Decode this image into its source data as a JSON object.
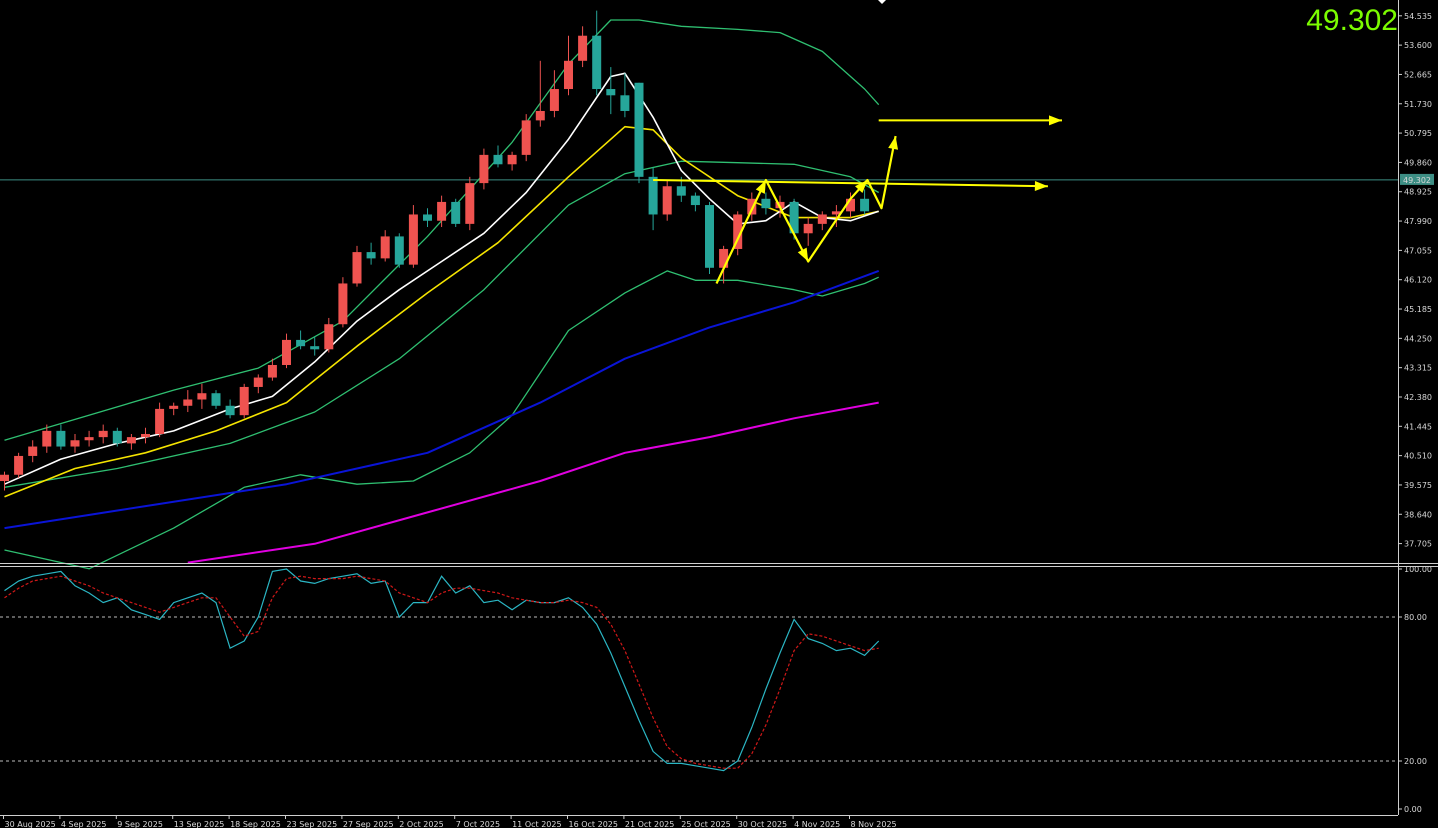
{
  "price_readout": "49.302",
  "colors": {
    "background": "#000000",
    "bull_candle": "#ef5350",
    "bear_candle": "#26a69a",
    "bollinger": "#2fbf71",
    "ma_fast": "#ffffff",
    "ma_mid": "#f5e400",
    "ma_slow": "#0a14d6",
    "ma_long": "#e000e0",
    "stoch_main": "#2bb6c4",
    "stoch_signal": "#d01818",
    "annotation": "#ffff00",
    "current_price_line": "#3d8e84"
  },
  "chart_data": [
    {
      "type": "candlestick",
      "title": "",
      "x_labels": [
        "30 Aug 2025",
        "4 Sep 2025",
        "9 Sep 2025",
        "13 Sep 2025",
        "18 Sep 2025",
        "23 Sep 2025",
        "27 Sep 2025",
        "2 Oct 2025",
        "7 Oct 2025",
        "11 Oct 2025",
        "16 Oct 2025",
        "21 Oct 2025",
        "25 Oct 2025",
        "30 Oct 2025",
        "4 Nov 2025",
        "8 Nov 2025"
      ],
      "y_ticks": [
        "54.535",
        "53.600",
        "52.665",
        "51.730",
        "50.795",
        "49.860",
        "48.925",
        "47.990",
        "47.055",
        "46.120",
        "45.185",
        "44.250",
        "43.315",
        "42.380",
        "41.445",
        "40.510",
        "39.575",
        "38.640",
        "37.705"
      ],
      "ylim": [
        37.15,
        54.72
      ],
      "current_price": 49.302,
      "current_price_label": "49.302",
      "candles": [
        [
          39.7,
          40.0,
          39.4,
          39.9
        ],
        [
          39.9,
          40.6,
          39.8,
          40.5
        ],
        [
          40.5,
          41.0,
          40.3,
          40.8
        ],
        [
          40.8,
          41.5,
          40.6,
          41.3
        ],
        [
          41.3,
          41.5,
          40.7,
          40.8
        ],
        [
          40.8,
          41.2,
          40.6,
          41.0
        ],
        [
          41.0,
          41.3,
          40.8,
          41.1
        ],
        [
          41.1,
          41.5,
          40.9,
          41.3
        ],
        [
          41.3,
          41.4,
          40.8,
          40.9
        ],
        [
          40.9,
          41.2,
          40.7,
          41.1
        ],
        [
          41.1,
          41.4,
          40.9,
          41.2
        ],
        [
          41.2,
          42.2,
          41.1,
          42.0
        ],
        [
          42.0,
          42.2,
          41.8,
          42.1
        ],
        [
          42.1,
          42.6,
          41.9,
          42.3
        ],
        [
          42.3,
          42.8,
          42.0,
          42.5
        ],
        [
          42.5,
          42.6,
          42.0,
          42.1
        ],
        [
          42.1,
          42.3,
          41.7,
          41.8
        ],
        [
          41.8,
          42.8,
          41.7,
          42.7
        ],
        [
          42.7,
          43.1,
          42.5,
          43.0
        ],
        [
          43.0,
          43.6,
          42.9,
          43.4
        ],
        [
          43.4,
          44.4,
          43.3,
          44.2
        ],
        [
          44.2,
          44.5,
          43.9,
          44.0
        ],
        [
          44.0,
          44.3,
          43.7,
          43.9
        ],
        [
          43.9,
          44.9,
          43.8,
          44.7
        ],
        [
          44.7,
          46.2,
          44.6,
          46.0
        ],
        [
          46.0,
          47.2,
          45.9,
          47.0
        ],
        [
          47.0,
          47.3,
          46.6,
          46.8
        ],
        [
          46.8,
          47.7,
          46.7,
          47.5
        ],
        [
          47.5,
          47.6,
          46.5,
          46.6
        ],
        [
          46.6,
          48.5,
          46.5,
          48.2
        ],
        [
          48.2,
          48.4,
          47.8,
          48.0
        ],
        [
          48.0,
          48.8,
          47.8,
          48.6
        ],
        [
          48.6,
          48.7,
          47.8,
          47.9
        ],
        [
          47.9,
          49.4,
          47.7,
          49.2
        ],
        [
          49.2,
          50.3,
          49.0,
          50.1
        ],
        [
          50.1,
          50.4,
          49.7,
          49.8
        ],
        [
          49.8,
          50.2,
          49.6,
          50.1
        ],
        [
          50.1,
          51.4,
          49.9,
          51.2
        ],
        [
          51.2,
          53.1,
          51.0,
          51.5
        ],
        [
          51.5,
          52.8,
          51.3,
          52.2
        ],
        [
          52.2,
          53.9,
          52.0,
          53.1
        ],
        [
          53.1,
          54.2,
          52.9,
          53.9
        ],
        [
          53.9,
          54.7,
          52.0,
          52.2
        ],
        [
          52.2,
          52.9,
          51.4,
          52.0
        ],
        [
          52.0,
          52.7,
          51.3,
          51.5
        ],
        [
          52.4,
          52.4,
          49.2,
          49.4
        ],
        [
          49.4,
          49.7,
          47.7,
          48.2
        ],
        [
          48.2,
          49.3,
          48.0,
          49.1
        ],
        [
          49.1,
          49.4,
          48.6,
          48.8
        ],
        [
          48.8,
          48.9,
          48.3,
          48.5
        ],
        [
          48.5,
          48.6,
          46.3,
          46.5
        ],
        [
          46.5,
          47.2,
          46.0,
          47.1
        ],
        [
          47.1,
          48.3,
          46.9,
          48.2
        ],
        [
          48.2,
          48.9,
          48.0,
          48.7
        ],
        [
          48.7,
          48.9,
          48.2,
          48.4
        ],
        [
          48.4,
          48.8,
          48.1,
          48.6
        ],
        [
          48.6,
          48.7,
          47.4,
          47.6
        ],
        [
          47.6,
          48.1,
          47.2,
          47.9
        ],
        [
          47.9,
          48.3,
          47.7,
          48.2
        ],
        [
          48.2,
          48.5,
          47.8,
          48.3
        ],
        [
          48.3,
          48.9,
          48.1,
          48.7
        ],
        [
          48.7,
          49.0,
          48.2,
          48.3
        ]
      ],
      "indicators": {
        "bollinger_upper": [
          [
            0,
            41.0
          ],
          [
            12,
            42.6
          ],
          [
            18,
            43.3
          ],
          [
            24,
            44.8
          ],
          [
            30,
            47.5
          ],
          [
            36,
            50.5
          ],
          [
            40,
            53.0
          ],
          [
            43,
            54.4
          ],
          [
            45,
            54.4
          ],
          [
            48,
            54.2
          ],
          [
            52,
            54.1
          ],
          [
            55,
            54.0
          ],
          [
            58,
            53.4
          ],
          [
            61,
            52.2
          ],
          [
            62,
            51.7
          ]
        ],
        "bollinger_middle": [
          [
            0,
            39.5
          ],
          [
            8,
            40.1
          ],
          [
            16,
            40.9
          ],
          [
            22,
            41.9
          ],
          [
            28,
            43.6
          ],
          [
            34,
            45.8
          ],
          [
            40,
            48.5
          ],
          [
            44,
            49.5
          ],
          [
            48,
            49.9
          ],
          [
            52,
            49.85
          ],
          [
            56,
            49.8
          ],
          [
            60,
            49.4
          ],
          [
            62,
            48.9
          ]
        ],
        "bollinger_lower": [
          [
            0,
            37.5
          ],
          [
            6,
            36.9
          ],
          [
            12,
            38.2
          ],
          [
            17,
            39.5
          ],
          [
            21,
            39.9
          ],
          [
            25,
            39.6
          ],
          [
            29,
            39.7
          ],
          [
            33,
            40.6
          ],
          [
            36,
            41.8
          ],
          [
            40,
            44.5
          ],
          [
            44,
            45.7
          ],
          [
            47,
            46.4
          ],
          [
            49,
            46.1
          ],
          [
            52,
            46.1
          ],
          [
            56,
            45.8
          ],
          [
            58,
            45.6
          ],
          [
            61,
            46.0
          ],
          [
            62,
            46.2
          ]
        ],
        "ma_fast": [
          [
            0,
            39.6
          ],
          [
            4,
            40.4
          ],
          [
            8,
            40.9
          ],
          [
            12,
            41.3
          ],
          [
            16,
            42.0
          ],
          [
            19,
            42.4
          ],
          [
            22,
            43.5
          ],
          [
            25,
            44.8
          ],
          [
            28,
            45.8
          ],
          [
            31,
            46.7
          ],
          [
            34,
            47.6
          ],
          [
            37,
            48.9
          ],
          [
            40,
            50.6
          ],
          [
            43,
            52.6
          ],
          [
            44,
            52.7
          ],
          [
            46,
            51.3
          ],
          [
            48,
            49.6
          ],
          [
            50,
            48.7
          ],
          [
            52,
            47.9
          ],
          [
            54,
            48.0
          ],
          [
            56,
            48.6
          ],
          [
            58,
            48.1
          ],
          [
            60,
            48.0
          ],
          [
            62,
            48.3
          ]
        ],
        "ma_mid": [
          [
            0,
            39.2
          ],
          [
            5,
            40.1
          ],
          [
            10,
            40.6
          ],
          [
            15,
            41.3
          ],
          [
            20,
            42.2
          ],
          [
            25,
            44.0
          ],
          [
            30,
            45.7
          ],
          [
            35,
            47.3
          ],
          [
            40,
            49.4
          ],
          [
            44,
            51.0
          ],
          [
            46,
            50.9
          ],
          [
            48,
            50.0
          ],
          [
            52,
            48.8
          ],
          [
            56,
            48.1
          ],
          [
            60,
            48.1
          ],
          [
            62,
            48.3
          ]
        ],
        "ma_slow": [
          [
            0,
            38.2
          ],
          [
            10,
            38.9
          ],
          [
            20,
            39.6
          ],
          [
            30,
            40.6
          ],
          [
            38,
            42.2
          ],
          [
            44,
            43.6
          ],
          [
            50,
            44.6
          ],
          [
            56,
            45.4
          ],
          [
            62,
            46.4
          ]
        ],
        "ma_long": [
          [
            13,
            37.1
          ],
          [
            22,
            37.7
          ],
          [
            30,
            38.7
          ],
          [
            38,
            39.7
          ],
          [
            44,
            40.6
          ],
          [
            50,
            41.1
          ],
          [
            56,
            41.7
          ],
          [
            62,
            42.2
          ]
        ]
      },
      "annotations": {
        "horizontal_arrow_1": {
          "from": [
            46,
            49.3
          ],
          "to": [
            74,
            49.1
          ]
        },
        "horizontal_arrow_2": {
          "from": [
            62,
            51.2
          ],
          "to": [
            75,
            51.2
          ]
        },
        "zigzag": [
          [
            50.5,
            46.0
          ],
          [
            54,
            49.3
          ],
          [
            57,
            46.7
          ],
          [
            60,
            48.7
          ],
          [
            61.2,
            49.3
          ],
          [
            62.2,
            48.4
          ],
          [
            63.2,
            50.7
          ]
        ]
      }
    },
    {
      "type": "line",
      "title": "",
      "y_ticks": [
        "100.00",
        "80.00",
        "20.00",
        "0.00"
      ],
      "ylim": [
        0,
        100
      ],
      "levels": [
        80,
        20
      ],
      "series": [
        {
          "role": "main",
          "values": [
            91,
            95,
            97,
            98,
            99,
            93,
            90,
            86,
            88,
            83,
            81,
            79,
            86,
            88,
            90,
            86,
            67,
            70,
            80,
            99,
            100,
            95,
            94,
            96,
            97,
            98,
            94,
            95,
            80,
            86,
            86,
            97,
            90,
            93,
            86,
            87,
            83,
            87,
            86,
            86,
            88,
            84,
            77,
            65,
            51,
            37,
            24,
            19,
            19,
            18,
            17,
            16,
            20,
            34,
            50,
            65,
            79,
            71,
            69,
            66,
            67,
            64,
            70
          ]
        },
        {
          "role": "signal",
          "values": [
            88,
            92,
            95,
            96,
            97,
            95,
            93,
            90,
            88,
            86,
            84,
            82,
            84,
            86,
            88,
            88,
            80,
            72,
            74,
            88,
            96,
            97,
            96,
            96,
            96,
            97,
            96,
            95,
            90,
            88,
            86,
            90,
            92,
            92,
            91,
            90,
            88,
            87,
            86,
            86,
            87,
            86,
            84,
            77,
            66,
            52,
            38,
            26,
            21,
            19,
            18,
            17,
            17,
            23,
            35,
            50,
            66,
            73,
            72,
            70,
            68,
            66,
            67
          ]
        }
      ]
    }
  ]
}
